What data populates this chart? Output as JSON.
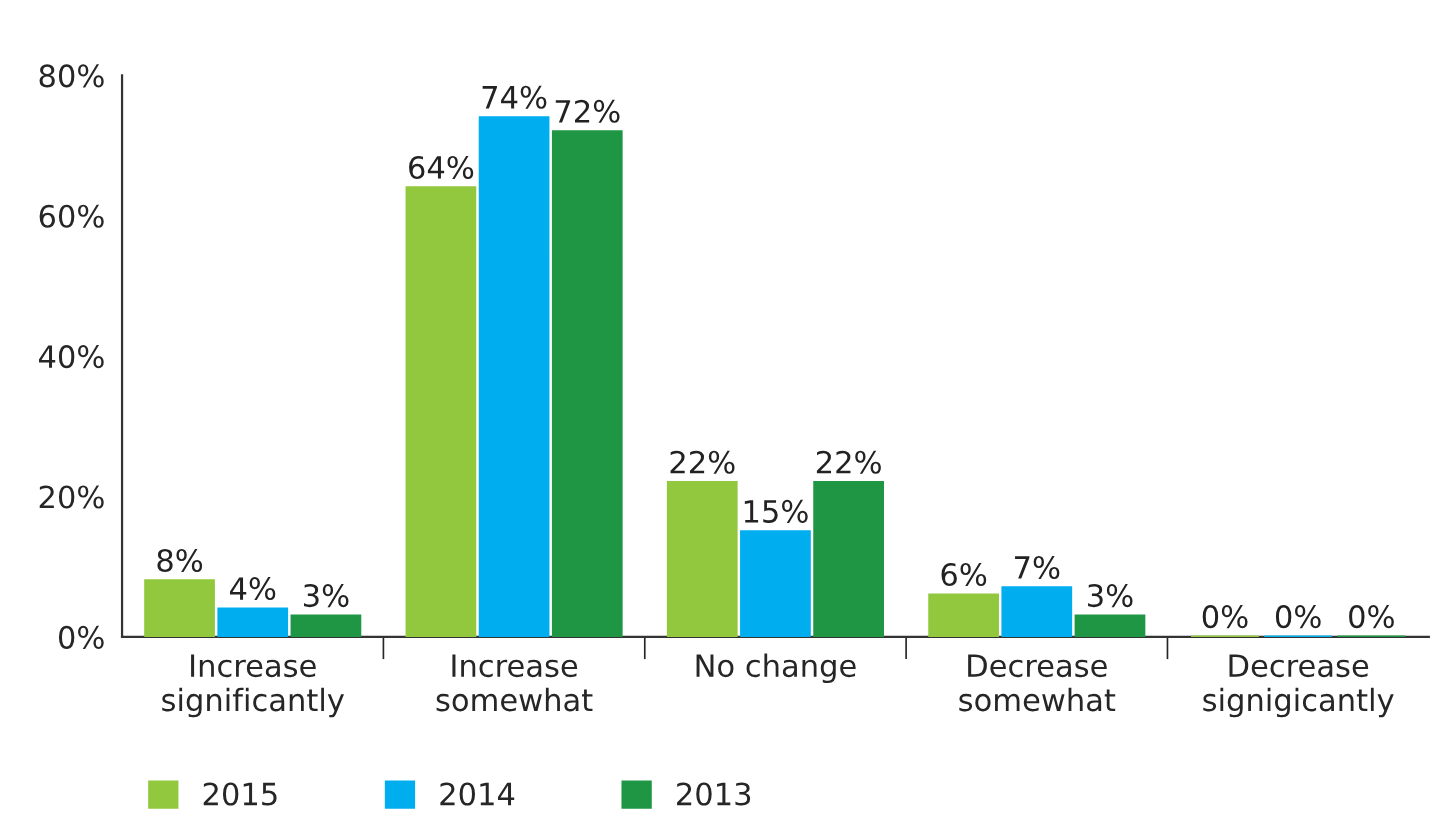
{
  "chart_data": {
    "type": "bar",
    "categories": [
      "Increase\nsignificantly",
      "Increase\nsomewhat",
      "No change",
      "Decrease\nsomewhat",
      "Decrease\nsignigicantly"
    ],
    "series": [
      {
        "name": "2015",
        "color": "#92c83e",
        "values": [
          8,
          64,
          22,
          6,
          0
        ],
        "value_labels": [
          "8%",
          "64%",
          "22%",
          "6%",
          "0%"
        ]
      },
      {
        "name": "2014",
        "color": "#00aeef",
        "values": [
          4,
          74,
          15,
          7,
          0
        ],
        "value_labels": [
          "4%",
          "74%",
          "15%",
          "7%",
          "0%"
        ]
      },
      {
        "name": "2013",
        "color": "#1e9644",
        "values": [
          3,
          72,
          22,
          3,
          0
        ],
        "value_labels": [
          "3%",
          "72%",
          "22%",
          "3%",
          "0%"
        ]
      }
    ],
    "ylim": [
      0,
      80
    ],
    "yticks": [
      {
        "value": 0,
        "label": "0%"
      },
      {
        "value": 20,
        "label": "20%"
      },
      {
        "value": 40,
        "label": "40%"
      },
      {
        "value": 60,
        "label": "60%"
      },
      {
        "value": 80,
        "label": "80%"
      }
    ],
    "grid": false,
    "legend": "bottom left"
  }
}
